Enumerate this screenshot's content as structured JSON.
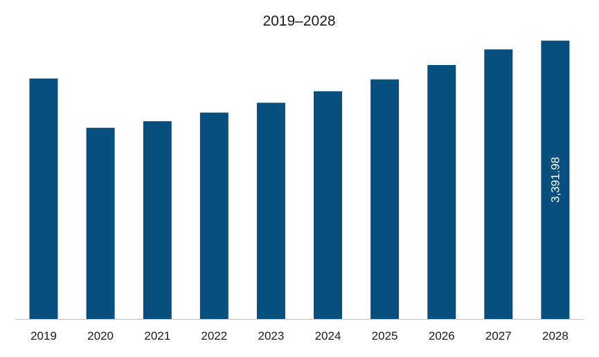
{
  "chart_data": {
    "type": "bar",
    "title": "2019–2028",
    "categories": [
      "2019",
      "2020",
      "2021",
      "2022",
      "2023",
      "2024",
      "2025",
      "2026",
      "2027",
      "2028"
    ],
    "values": [
      2930,
      2330,
      2410,
      2515,
      2635,
      2775,
      2920,
      3095,
      3285,
      3391.98
    ],
    "data_labels": [
      null,
      null,
      null,
      null,
      null,
      null,
      null,
      null,
      null,
      "3,391.98"
    ],
    "ylim": [
      0,
      3550
    ],
    "bar_color": "#064f7e",
    "grid": false,
    "y_axis_visible": false,
    "legend": "none"
  }
}
